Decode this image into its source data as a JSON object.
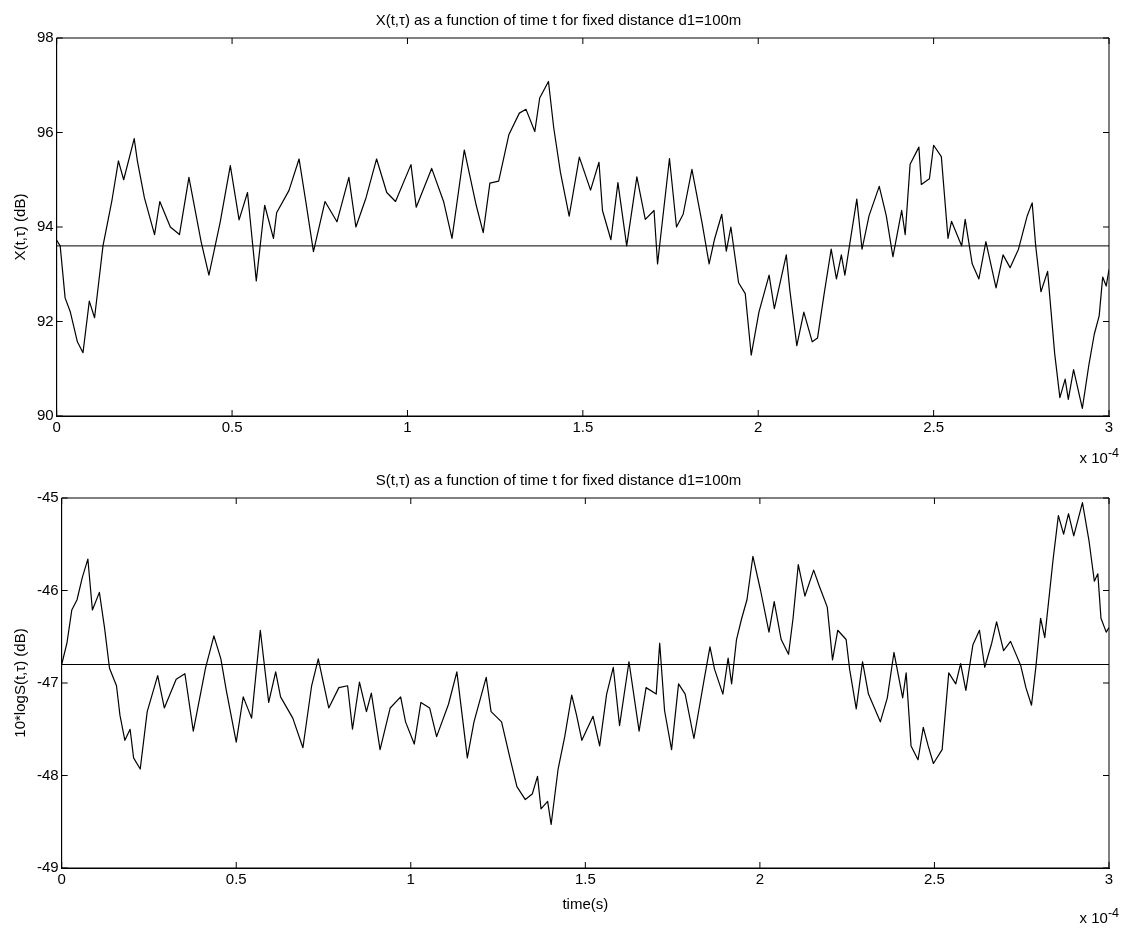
{
  "chart_data": [
    {
      "type": "line",
      "title": "X(t,τ) as a function of time t for fixed distance d1=100m",
      "ylabel": "X(t,τ) (dB)",
      "annotations": [
        "x 10$^{-4}$"
      ],
      "xlim": [
        0,
        3
      ],
      "xticks": [
        0,
        0.5,
        1,
        1.5,
        2,
        2.5,
        3
      ],
      "ylim": [
        90,
        98
      ],
      "yticks": [
        90,
        92,
        94,
        96,
        98
      ],
      "ref_lines": [
        {
          "axis": "y",
          "value": 93.6,
          "color": "#000000"
        }
      ],
      "series": [
        {
          "color": "#000000",
          "x": [
            0,
            0.01,
            0.024,
            0.039,
            0.059,
            0.075,
            0.093,
            0.108,
            0.132,
            0.157,
            0.176,
            0.191,
            0.221,
            0.23,
            0.25,
            0.279,
            0.294,
            0.324,
            0.35,
            0.377,
            0.412,
            0.434,
            0.466,
            0.495,
            0.52,
            0.544,
            0.569,
            0.593,
            0.618,
            0.627,
            0.662,
            0.691,
            0.711,
            0.732,
            0.765,
            0.799,
            0.833,
            0.853,
            0.882,
            0.912,
            0.941,
            0.966,
            1.01,
            1.025,
            1.069,
            1.103,
            1.127,
            1.162,
            1.196,
            1.216,
            1.235,
            1.26,
            1.289,
            1.319,
            1.338,
            1.363,
            1.377,
            1.402,
            1.417,
            1.436,
            1.461,
            1.49,
            1.522,
            1.546,
            1.556,
            1.58,
            1.6,
            1.625,
            1.654,
            1.678,
            1.703,
            1.713,
            1.747,
            1.767,
            1.786,
            1.811,
            1.84,
            1.86,
            1.875,
            1.896,
            1.909,
            1.922,
            1.944,
            1.963,
            1.98,
            2.002,
            2.031,
            2.046,
            2.08,
            2.09,
            2.11,
            2.13,
            2.154,
            2.169,
            2.188,
            2.208,
            2.223,
            2.237,
            2.247,
            2.281,
            2.296,
            2.316,
            2.345,
            2.365,
            2.384,
            2.409,
            2.419,
            2.433,
            2.458,
            2.465,
            2.488,
            2.5,
            2.522,
            2.541,
            2.551,
            2.58,
            2.59,
            2.61,
            2.629,
            2.649,
            2.678,
            2.698,
            2.718,
            2.742,
            2.767,
            2.781,
            2.791,
            2.806,
            2.825,
            2.845,
            2.86,
            2.875,
            2.884,
            2.899,
            2.924,
            2.943,
            2.958,
            2.972,
            2.982,
            2.992,
            3.0
          ],
          "values": [
            93.72,
            93.6,
            92.5,
            92.2,
            91.57,
            91.34,
            92.43,
            92.08,
            93.6,
            94.54,
            95.4,
            95.0,
            95.87,
            95.4,
            94.62,
            93.84,
            94.54,
            94.0,
            93.84,
            95.05,
            93.68,
            92.98,
            94.1,
            95.3,
            94.15,
            94.73,
            92.86,
            94.46,
            93.76,
            94.3,
            94.77,
            95.44,
            94.5,
            93.48,
            94.54,
            94.11,
            95.05,
            94.0,
            94.62,
            95.44,
            94.73,
            94.54,
            95.32,
            94.42,
            95.24,
            94.54,
            93.76,
            95.63,
            94.46,
            93.88,
            94.93,
            94.97,
            95.95,
            96.41,
            96.49,
            96.02,
            96.73,
            97.08,
            96.1,
            95.16,
            94.23,
            95.48,
            94.78,
            95.37,
            94.35,
            93.73,
            94.94,
            93.6,
            95.06,
            94.16,
            94.35,
            93.22,
            95.45,
            94.0,
            94.27,
            95.22,
            94.08,
            93.22,
            93.73,
            94.27,
            93.49,
            94.0,
            92.82,
            92.59,
            91.29,
            92.2,
            92.98,
            92.27,
            93.41,
            92.67,
            91.49,
            92.2,
            91.57,
            91.65,
            92.59,
            93.53,
            92.9,
            93.41,
            92.98,
            94.59,
            93.53,
            94.24,
            94.86,
            94.24,
            93.37,
            94.35,
            93.84,
            95.33,
            95.69,
            94.9,
            95.02,
            95.73,
            95.49,
            93.76,
            94.12,
            93.6,
            94.16,
            93.22,
            92.9,
            93.69,
            92.71,
            93.41,
            93.14,
            93.53,
            94.24,
            94.51,
            93.6,
            92.63,
            93.06,
            91.33,
            90.39,
            90.78,
            90.35,
            90.98,
            90.16,
            91.1,
            91.73,
            92.12,
            92.94,
            92.75,
            93.1
          ]
        }
      ]
    },
    {
      "type": "line",
      "title": "S(t,τ) as a function of time t for fixed distance d1=100m",
      "xlabel": "time(s)",
      "ylabel": "10*logS(t,τ) (dB)",
      "annotations": [
        "x 10$^{-4}$"
      ],
      "xlim": [
        0,
        3
      ],
      "xticks": [
        0,
        0.5,
        1,
        1.5,
        2,
        2.5,
        3
      ],
      "ylim": [
        -49,
        -45
      ],
      "yticks": [
        -49,
        -48,
        -47,
        -46,
        -45
      ],
      "ref_lines": [
        {
          "axis": "y",
          "value": -46.8,
          "color": "#000000"
        }
      ],
      "series": [
        {
          "color": "#000000",
          "x": [
            0,
            0.015,
            0.029,
            0.044,
            0.059,
            0.075,
            0.088,
            0.108,
            0.123,
            0.137,
            0.157,
            0.167,
            0.181,
            0.196,
            0.206,
            0.225,
            0.245,
            0.275,
            0.294,
            0.328,
            0.353,
            0.377,
            0.412,
            0.436,
            0.456,
            0.471,
            0.5,
            0.52,
            0.544,
            0.569,
            0.593,
            0.613,
            0.627,
            0.662,
            0.691,
            0.716,
            0.735,
            0.765,
            0.794,
            0.819,
            0.833,
            0.853,
            0.873,
            0.887,
            0.912,
            0.941,
            0.971,
            0.985,
            1.01,
            1.029,
            1.054,
            1.074,
            1.108,
            1.132,
            1.162,
            1.181,
            1.216,
            1.23,
            1.26,
            1.284,
            1.304,
            1.328,
            1.348,
            1.363,
            1.373,
            1.392,
            1.402,
            1.422,
            1.441,
            1.461,
            1.475,
            1.49,
            1.522,
            1.541,
            1.561,
            1.58,
            1.598,
            1.625,
            1.654,
            1.674,
            1.703,
            1.713,
            1.727,
            1.747,
            1.767,
            1.786,
            1.811,
            1.84,
            1.857,
            1.87,
            1.894,
            1.909,
            1.919,
            1.933,
            1.948,
            1.963,
            1.98,
            2.002,
            2.026,
            2.041,
            2.061,
            2.082,
            2.095,
            2.11,
            2.129,
            2.154,
            2.169,
            2.193,
            2.208,
            2.223,
            2.247,
            2.257,
            2.276,
            2.294,
            2.311,
            2.345,
            2.365,
            2.384,
            2.409,
            2.419,
            2.433,
            2.453,
            2.468,
            2.482,
            2.497,
            2.522,
            2.541,
            2.561,
            2.575,
            2.59,
            2.61,
            2.629,
            2.644,
            2.664,
            2.678,
            2.698,
            2.718,
            2.747,
            2.762,
            2.778,
            2.791,
            2.804,
            2.816,
            2.84,
            2.855,
            2.87,
            2.884,
            2.899,
            2.924,
            2.943,
            2.958,
            2.968,
            2.977,
            2.992,
            3.0
          ],
          "values": [
            -46.8,
            -46.57,
            -46.21,
            -46.1,
            -45.86,
            -45.66,
            -46.21,
            -46.02,
            -46.41,
            -46.84,
            -47.03,
            -47.35,
            -47.62,
            -47.5,
            -47.81,
            -47.93,
            -47.31,
            -46.92,
            -47.27,
            -46.96,
            -46.9,
            -47.52,
            -46.84,
            -46.49,
            -46.74,
            -47.07,
            -47.64,
            -47.15,
            -47.38,
            -46.43,
            -47.21,
            -46.88,
            -47.15,
            -47.38,
            -47.7,
            -47.03,
            -46.74,
            -47.27,
            -47.05,
            -47.03,
            -47.5,
            -46.99,
            -47.31,
            -47.11,
            -47.72,
            -47.27,
            -47.15,
            -47.42,
            -47.66,
            -47.21,
            -47.27,
            -47.58,
            -47.23,
            -46.88,
            -47.81,
            -47.42,
            -46.94,
            -47.31,
            -47.42,
            -47.81,
            -48.12,
            -48.26,
            -48.2,
            -48.01,
            -48.36,
            -48.28,
            -48.53,
            -47.93,
            -47.58,
            -47.13,
            -47.35,
            -47.62,
            -47.36,
            -47.68,
            -47.12,
            -46.83,
            -47.46,
            -46.77,
            -47.52,
            -47.05,
            -47.12,
            -46.57,
            -47.3,
            -47.72,
            -47.01,
            -47.12,
            -47.6,
            -46.97,
            -46.61,
            -46.85,
            -47.12,
            -46.73,
            -47.01,
            -46.53,
            -46.3,
            -46.1,
            -45.63,
            -46.0,
            -46.45,
            -46.12,
            -46.53,
            -46.69,
            -46.3,
            -45.72,
            -46.06,
            -45.78,
            -45.94,
            -46.18,
            -46.75,
            -46.43,
            -46.53,
            -46.85,
            -47.28,
            -46.77,
            -47.12,
            -47.42,
            -47.16,
            -46.67,
            -47.16,
            -46.89,
            -47.68,
            -47.83,
            -47.48,
            -47.68,
            -47.87,
            -47.72,
            -46.89,
            -47.01,
            -46.79,
            -47.08,
            -46.59,
            -46.43,
            -46.83,
            -46.57,
            -46.34,
            -46.65,
            -46.55,
            -46.81,
            -47.05,
            -47.24,
            -46.81,
            -46.3,
            -46.51,
            -45.66,
            -45.19,
            -45.39,
            -45.17,
            -45.41,
            -45.05,
            -45.47,
            -45.9,
            -45.82,
            -46.3,
            -46.45,
            -46.4
          ]
        }
      ]
    }
  ]
}
